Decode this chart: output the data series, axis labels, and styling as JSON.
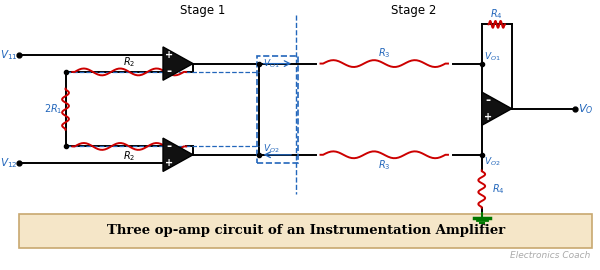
{
  "title": "Three op-amp circuit of an Instrumentation Amplifier",
  "title_bg": "#f5e6c8",
  "title_border": "#c8a870",
  "watermark": "Electronics Coach",
  "stage1_label": "Stage 1",
  "stage2_label": "Stage 2",
  "bg_color": "#ffffff",
  "line_color": "#000000",
  "resistor_color": "#cc0000",
  "dashed_color": "#2266bb",
  "label_color": "#2266bb",
  "ground_color": "#007700",
  "opamp_fill": "#111111"
}
